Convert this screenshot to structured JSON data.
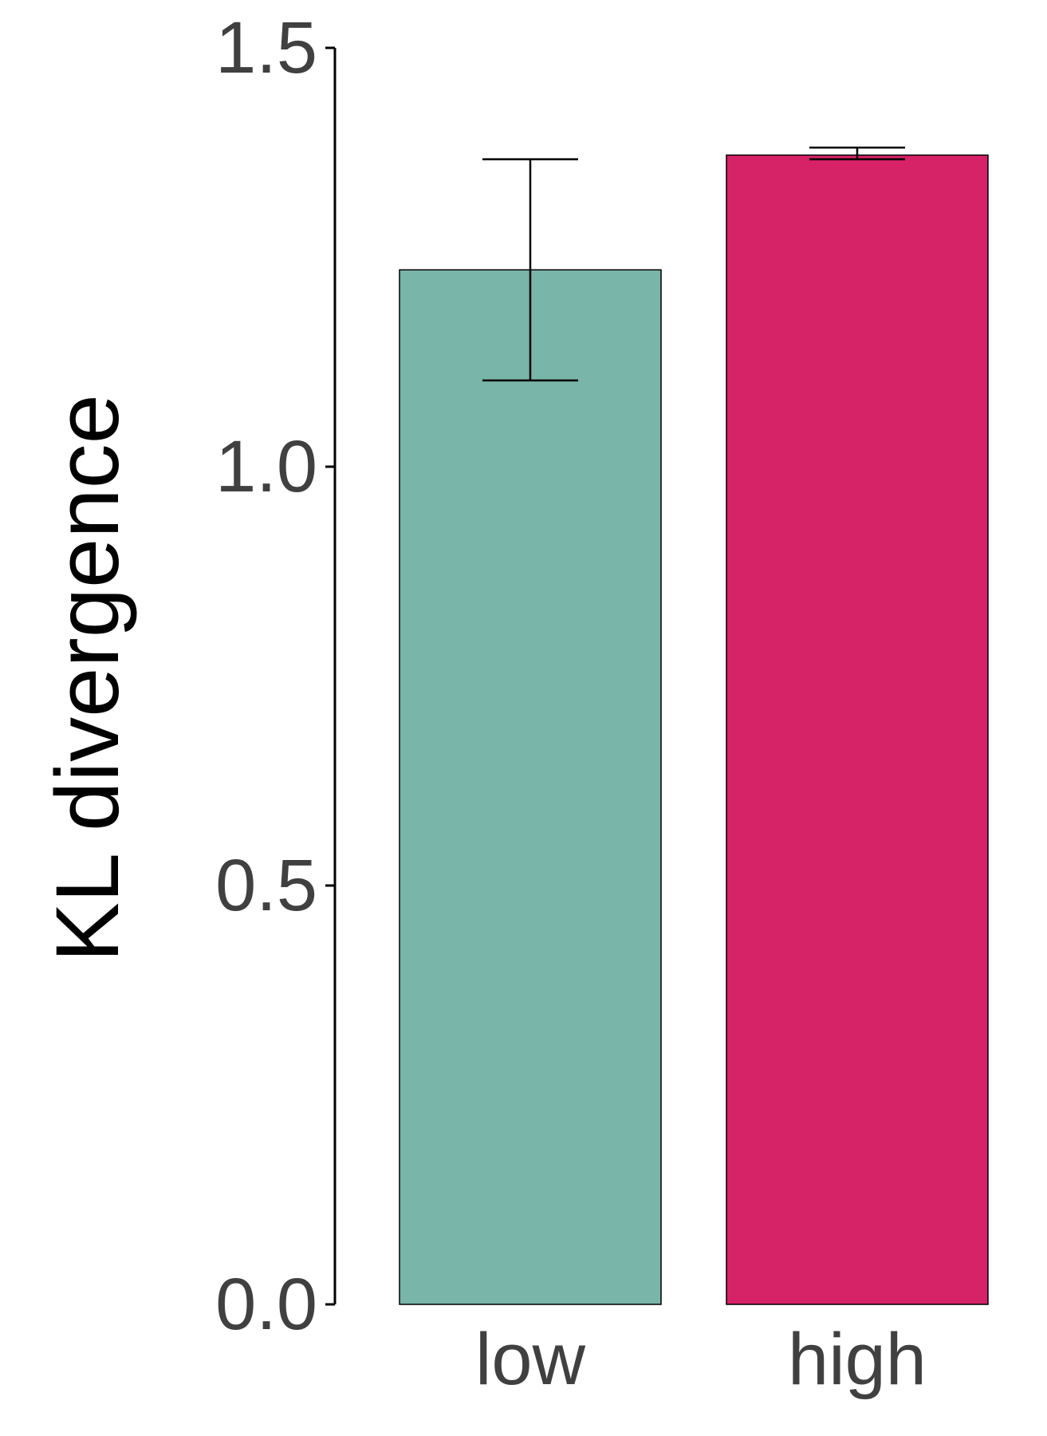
{
  "chart_data": {
    "type": "bar",
    "title": "",
    "xlabel": "",
    "ylabel": "KL divergence",
    "ylim": [
      0,
      1.5
    ],
    "yticks": [
      0.0,
      0.5,
      1.0,
      1.5
    ],
    "ytick_labels": [
      "0.0",
      "0.5",
      "1.0",
      "1.5"
    ],
    "grid": false,
    "legend": "none",
    "categories": [
      "low",
      "high"
    ],
    "values": [
      1.235,
      1.372
    ],
    "error_lower": [
      1.103,
      1.367
    ],
    "error_upper": [
      1.367,
      1.381
    ],
    "colors": [
      "#79b5a9",
      "#d62266"
    ],
    "bar_edge_color": "#000000",
    "axis_color": "#000000"
  }
}
